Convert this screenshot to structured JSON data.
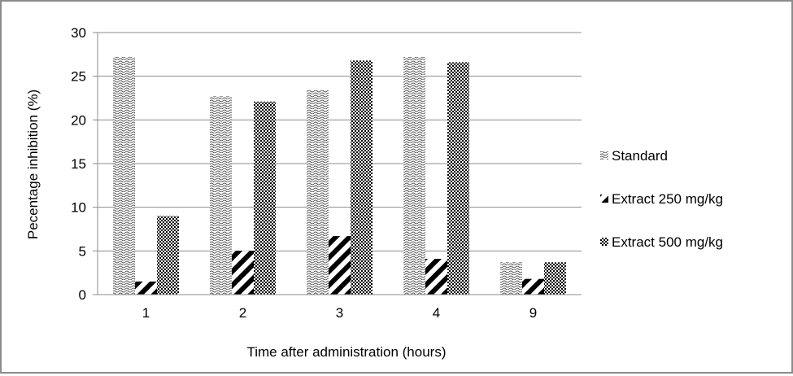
{
  "chart_data": {
    "type": "bar",
    "title": "",
    "xlabel": "Time after administration (hours)",
    "ylabel": "Pecentage inhibition (%)",
    "categories": [
      "1",
      "2",
      "3",
      "4",
      "9"
    ],
    "ylim": [
      0,
      30
    ],
    "yticks": [
      "0",
      "5",
      "10",
      "15",
      "20",
      "25",
      "30"
    ],
    "grid": true,
    "legend_position": "right",
    "series": [
      {
        "name": "Standard",
        "pattern": "wave",
        "values": [
          27.2,
          22.7,
          23.4,
          27.2,
          3.7
        ]
      },
      {
        "name": "Extract 250 mg/kg",
        "pattern": "diagonal-stripes",
        "values": [
          1.5,
          5.0,
          6.7,
          4.1,
          1.8
        ]
      },
      {
        "name": "Extract 500 mg/kg",
        "pattern": "checker",
        "values": [
          9.0,
          22.1,
          26.8,
          26.6,
          3.7
        ]
      }
    ]
  }
}
